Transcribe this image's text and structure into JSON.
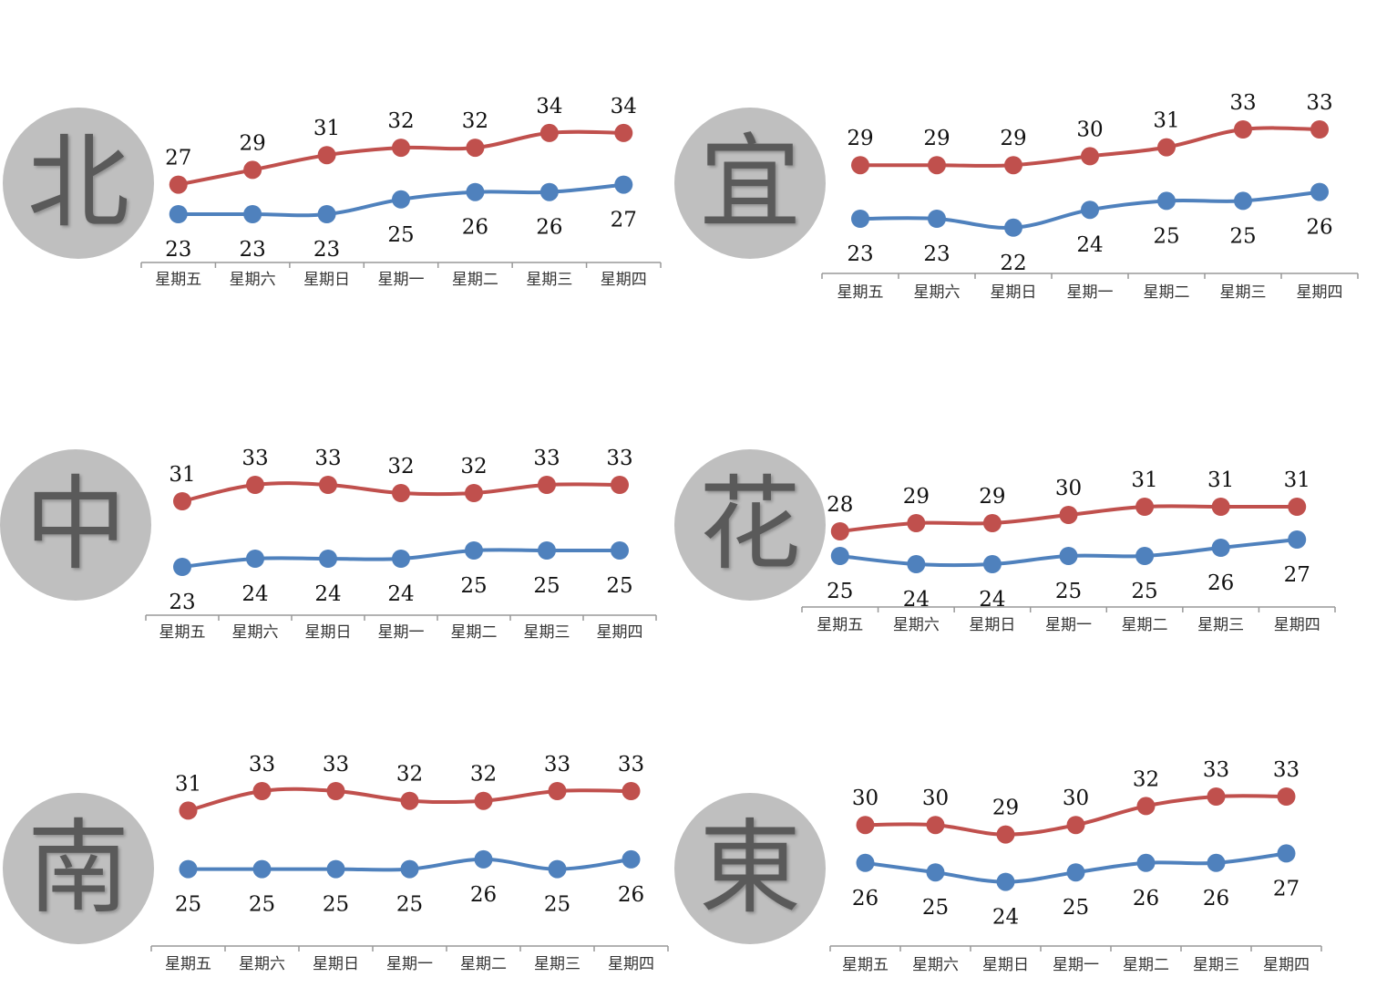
{
  "colors": {
    "high": "#c0504d",
    "low": "#4f81bd",
    "circle": "#bfbfbf",
    "axis": "#999999"
  },
  "chart_data": [
    {
      "type": "line",
      "region": "北",
      "categories": [
        "星期五",
        "星期六",
        "星期日",
        "星期一",
        "星期二",
        "星期三",
        "星期四"
      ],
      "series": [
        {
          "values": [
            27,
            29,
            31,
            32,
            32,
            34,
            34
          ]
        },
        {
          "values": [
            23,
            23,
            23,
            25,
            26,
            26,
            27
          ]
        }
      ]
    },
    {
      "type": "line",
      "region": "宜",
      "categories": [
        "星期五",
        "星期六",
        "星期日",
        "星期一",
        "星期二",
        "星期三",
        "星期四"
      ],
      "series": [
        {
          "values": [
            29,
            29,
            29,
            30,
            31,
            33,
            33
          ]
        },
        {
          "values": [
            23,
            23,
            22,
            24,
            25,
            25,
            26
          ]
        }
      ]
    },
    {
      "type": "line",
      "region": "中",
      "categories": [
        "星期五",
        "星期六",
        "星期日",
        "星期一",
        "星期二",
        "星期三",
        "星期四"
      ],
      "series": [
        {
          "values": [
            31,
            33,
            33,
            32,
            32,
            33,
            33
          ]
        },
        {
          "values": [
            23,
            24,
            24,
            24,
            25,
            25,
            25
          ]
        }
      ]
    },
    {
      "type": "line",
      "region": "花",
      "categories": [
        "星期五",
        "星期六",
        "星期日",
        "星期一",
        "星期二",
        "星期三",
        "星期四"
      ],
      "series": [
        {
          "values": [
            28,
            29,
            29,
            30,
            31,
            31,
            31
          ]
        },
        {
          "values": [
            25,
            24,
            24,
            25,
            25,
            26,
            27
          ]
        }
      ]
    },
    {
      "type": "line",
      "region": "南",
      "categories": [
        "星期五",
        "星期六",
        "星期日",
        "星期一",
        "星期二",
        "星期三",
        "星期四"
      ],
      "series": [
        {
          "values": [
            31,
            33,
            33,
            32,
            32,
            33,
            33
          ]
        },
        {
          "values": [
            25,
            25,
            25,
            25,
            26,
            25,
            26
          ]
        }
      ]
    },
    {
      "type": "line",
      "region": "東",
      "categories": [
        "星期五",
        "星期六",
        "星期日",
        "星期一",
        "星期二",
        "星期三",
        "星期四"
      ],
      "series": [
        {
          "values": [
            30,
            30,
            29,
            30,
            32,
            33,
            33
          ]
        },
        {
          "values": [
            26,
            25,
            24,
            25,
            26,
            26,
            27
          ]
        }
      ]
    }
  ]
}
